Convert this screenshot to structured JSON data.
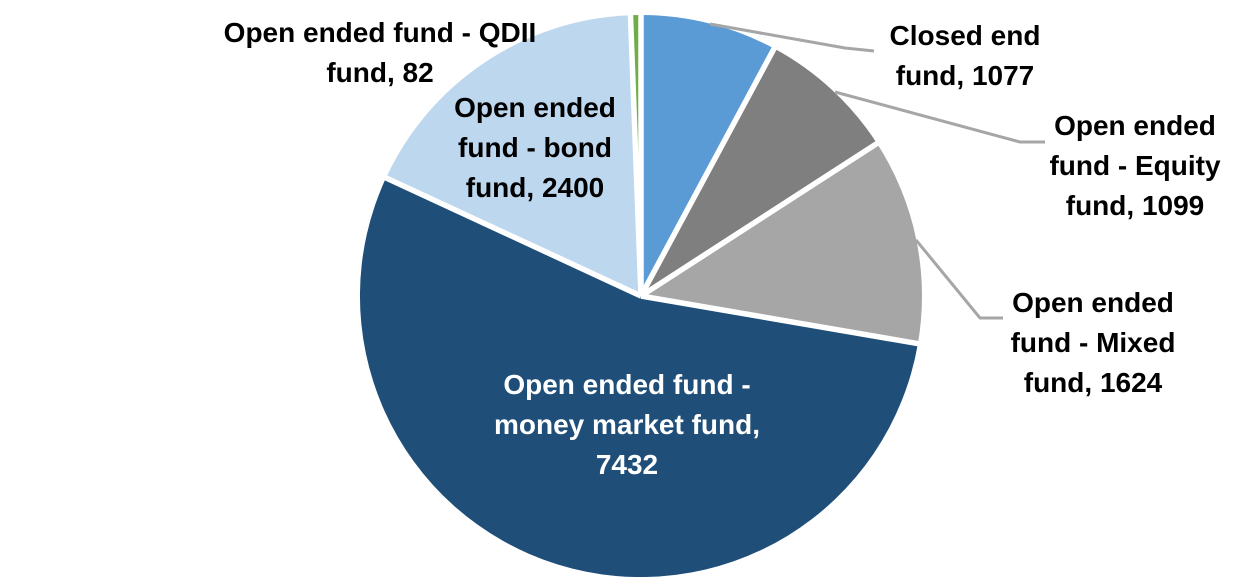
{
  "chart_data": {
    "type": "pie",
    "title": "",
    "direction": "clockwise",
    "start_angle_deg": 0,
    "legend_position": "none",
    "grid": false,
    "total": 13714,
    "background_color": "#FFFFFF",
    "separator_color": "#FFFFFF",
    "leader_line_color": "#A6A6A6",
    "slices": [
      {
        "name": "Closed end fund",
        "value": 1077,
        "color": "#5B9BD5",
        "display": "Closed end\nfund, 1077",
        "label_position": "outside-top-right",
        "label_color": "#000000",
        "has_leader_line": true
      },
      {
        "name": "Open ended fund - Equity fund",
        "value": 1099,
        "color": "#7F7F7F",
        "display": "Open ended\nfund - Equity\nfund, 1099",
        "label_position": "outside-right",
        "label_color": "#000000",
        "has_leader_line": true
      },
      {
        "name": "Open ended fund - Mixed fund",
        "value": 1624,
        "color": "#A6A6A6",
        "display": "Open ended\nfund - Mixed\nfund, 1624",
        "label_position": "outside-right",
        "label_color": "#000000",
        "has_leader_line": true
      },
      {
        "name": "Open ended fund - money market fund",
        "value": 7432,
        "color": "#1F4E79",
        "display": "Open ended fund -\nmoney market fund,\n7432",
        "label_position": "inside",
        "label_color": "#FFFFFF",
        "has_leader_line": false
      },
      {
        "name": "Open ended fund - bond fund",
        "value": 2400,
        "color": "#BDD7EE",
        "display": "Open ended\nfund - bond\nfund, 2400",
        "label_position": "inside",
        "label_color": "#000000",
        "has_leader_line": false
      },
      {
        "name": "Open ended fund - QDII fund",
        "value": 82,
        "color": "#70AD47",
        "display": "Open ended fund - QDII\nfund, 82",
        "label_position": "outside-top-left",
        "label_color": "#000000",
        "has_leader_line": false
      }
    ]
  }
}
